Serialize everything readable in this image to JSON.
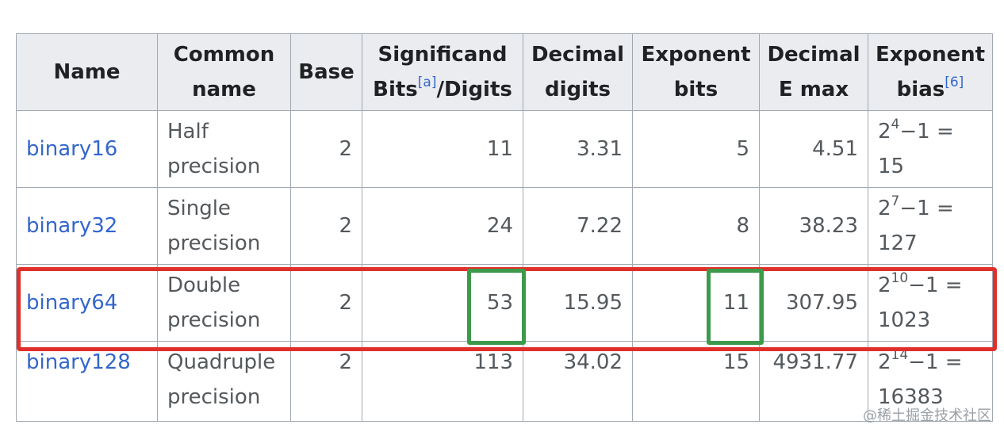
{
  "headers": [
    {
      "l1": "Name",
      "l2": ""
    },
    {
      "l1": "Common",
      "l2": "name"
    },
    {
      "l1": "Base",
      "l2": ""
    },
    {
      "l1": "Significand",
      "l2a": "Bits",
      "l2sup": "[a]",
      "l2b": "/Digits"
    },
    {
      "l1": "Decimal",
      "l2": "digits"
    },
    {
      "l1": "Exponent",
      "l2": "bits"
    },
    {
      "l1": "Decimal",
      "l2": "E max"
    },
    {
      "l1": "Exponent",
      "l2a": "bias",
      "l2sup": "[6]"
    }
  ],
  "rows": [
    {
      "name": "binary16",
      "common1": "Half",
      "common2": "precision",
      "base": "2",
      "sig": "11",
      "dec_digits": "3.31",
      "exp_bits": "5",
      "emax": "4.51",
      "bias_base": "2",
      "bias_exp": "4",
      "bias_rest": "−1 =",
      "bias_val": "15"
    },
    {
      "name": "binary32",
      "common1": "Single",
      "common2": "precision",
      "base": "2",
      "sig": "24",
      "dec_digits": "7.22",
      "exp_bits": "8",
      "emax": "38.23",
      "bias_base": "2",
      "bias_exp": "7",
      "bias_rest": "−1 =",
      "bias_val": "127"
    },
    {
      "name": "binary64",
      "common1": "Double",
      "common2": "precision",
      "base": "2",
      "sig": "53",
      "dec_digits": "15.95",
      "exp_bits": "11",
      "emax": "307.95",
      "bias_base": "2",
      "bias_exp": "10",
      "bias_rest": "−1 =",
      "bias_val": "1023"
    },
    {
      "name": "binary128",
      "common1": "Quadruple",
      "common2": "precision",
      "base": "2",
      "sig": "113",
      "dec_digits": "34.02",
      "exp_bits": "15",
      "emax": "4931.77",
      "bias_base": "2",
      "bias_exp": "14",
      "bias_rest": "−1 =",
      "bias_val": "16383"
    }
  ],
  "watermark": "@稀土掘金技术社区",
  "colors": {
    "highlight_row": "#e0302c",
    "highlight_cell": "#3d9a4a",
    "link": "#3366cc"
  }
}
